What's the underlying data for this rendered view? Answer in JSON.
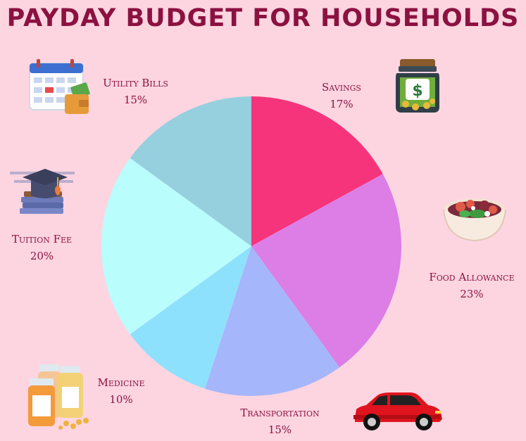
{
  "title": "PAYDAY BUDGET FOR HOUSEHOLDS",
  "chart_data": {
    "type": "pie",
    "title": "PAYDAY BUDGET FOR HOUSEHOLDS",
    "start_angle_deg": 0,
    "direction": "clockwise",
    "slices": [
      {
        "label": "Savings",
        "value": 17,
        "value_label": "17%",
        "color": "#f5347b"
      },
      {
        "label": "Food Allowance",
        "value": 23,
        "value_label": "23%",
        "color": "#dc7ee6"
      },
      {
        "label": "Transportation",
        "value": 15,
        "value_label": "15%",
        "color": "#a6b6fb"
      },
      {
        "label": "Medicine",
        "value": 10,
        "value_label": "10%",
        "color": "#8ee1fc"
      },
      {
        "label": "Tuition Fee",
        "value": 20,
        "value_label": "20%",
        "color": "#b9fdfd"
      },
      {
        "label": "Utility Bills",
        "value": 15,
        "value_label": "15%",
        "color": "#96d0df"
      }
    ]
  },
  "icons": {
    "savings": "money-jar-icon",
    "food": "salad-bowl-icon",
    "transport": "red-car-icon",
    "medicine": "pill-bottles-icon",
    "tuition": "graduation-cap-books-icon",
    "utility": "calendar-wallet-icon"
  }
}
